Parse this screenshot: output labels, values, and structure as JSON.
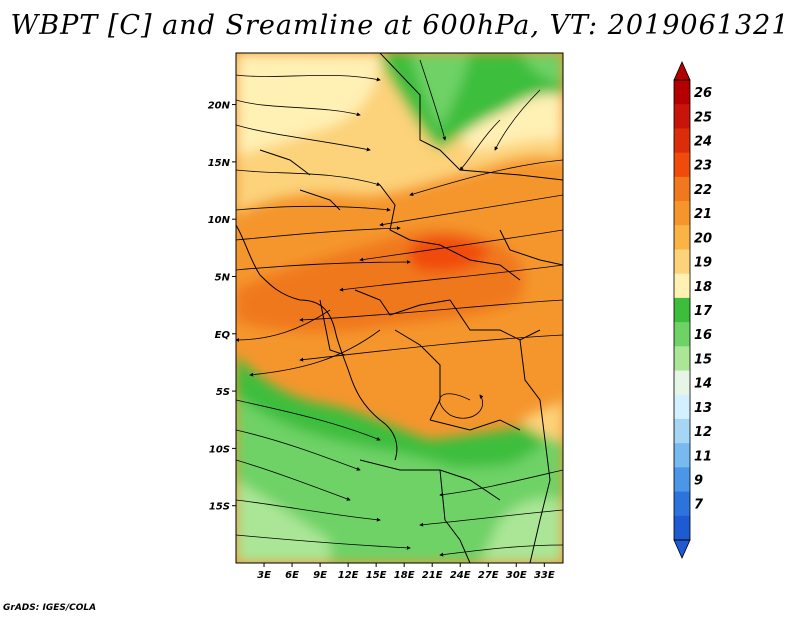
{
  "title": "WBPT [C] and Sreamline at 600hPa, VT: 2019061321",
  "credit": "GrADS: IGES/COLA",
  "map": {
    "variable": "WBPT [C]",
    "overlay": "Sreamline",
    "level": "600hPa",
    "valid_time": "2019061321",
    "lat_labels": [
      "20N",
      "15N",
      "10N",
      "5N",
      "EQ",
      "5S",
      "10S",
      "15S"
    ],
    "lon_labels": [
      "3E",
      "6E",
      "9E",
      "12E",
      "15E",
      "18E",
      "21E",
      "24E",
      "27E",
      "30E",
      "33E"
    ],
    "lat_values": [
      20,
      15,
      10,
      5,
      0,
      -5,
      -10,
      -15
    ],
    "lon_values": [
      3,
      6,
      9,
      12,
      15,
      18,
      21,
      24,
      27,
      30,
      33
    ],
    "domain": {
      "lon_min": 0,
      "lon_max": 35,
      "lat_min": -20,
      "lat_max": 24.5
    },
    "colorbar": {
      "labels": [
        "26",
        "25",
        "24",
        "23",
        "22",
        "21",
        "20",
        "19",
        "18",
        "17",
        "16",
        "15",
        "14",
        "13",
        "12",
        "11",
        "9",
        "7"
      ],
      "colors": [
        "#b40000",
        "#c8140a",
        "#dc2d0a",
        "#f04b0a",
        "#f0781e",
        "#f5962d",
        "#fab446",
        "#fcd27a",
        "#fff0b4",
        "#3cbe3c",
        "#6ed266",
        "#aae696",
        "#e6f5e6",
        "#d2f0ff",
        "#a5d7f5",
        "#78b9f0",
        "#4b96e6",
        "#2d73dc",
        "#1e5ad2"
      ]
    }
  }
}
